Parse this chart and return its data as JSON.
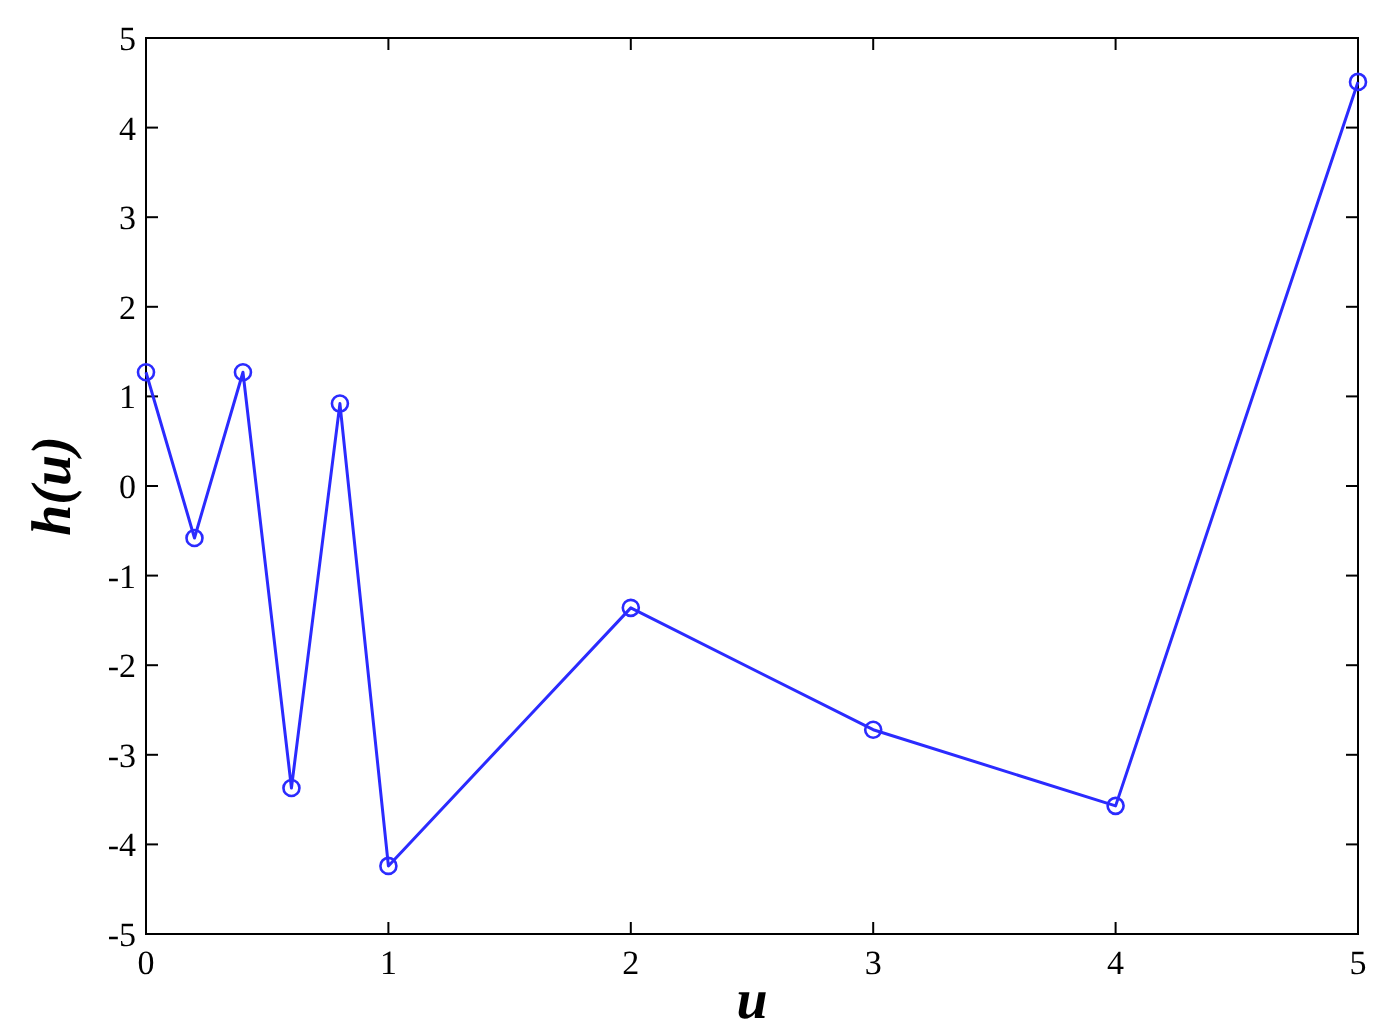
{
  "chart_data": {
    "type": "line",
    "xlabel": "u",
    "ylabel": "h(u)",
    "x": [
      0,
      0.2,
      0.4,
      0.6,
      0.8,
      1,
      2,
      3,
      4,
      5
    ],
    "series": [
      {
        "color": "#2b2bff",
        "values": [
          1.27,
          -0.58,
          1.27,
          -3.37,
          0.92,
          -4.24,
          -1.36,
          -2.72,
          -3.57,
          4.51
        ]
      }
    ],
    "xlim": [
      0,
      5
    ],
    "ylim": [
      -5,
      5
    ],
    "xticks": [
      0,
      1,
      2,
      3,
      4,
      5
    ],
    "yticks": [
      -5,
      -4,
      -3,
      -2,
      -1,
      0,
      1,
      2,
      3,
      4,
      5
    ],
    "marker": "circle",
    "line_style": "solid"
  }
}
